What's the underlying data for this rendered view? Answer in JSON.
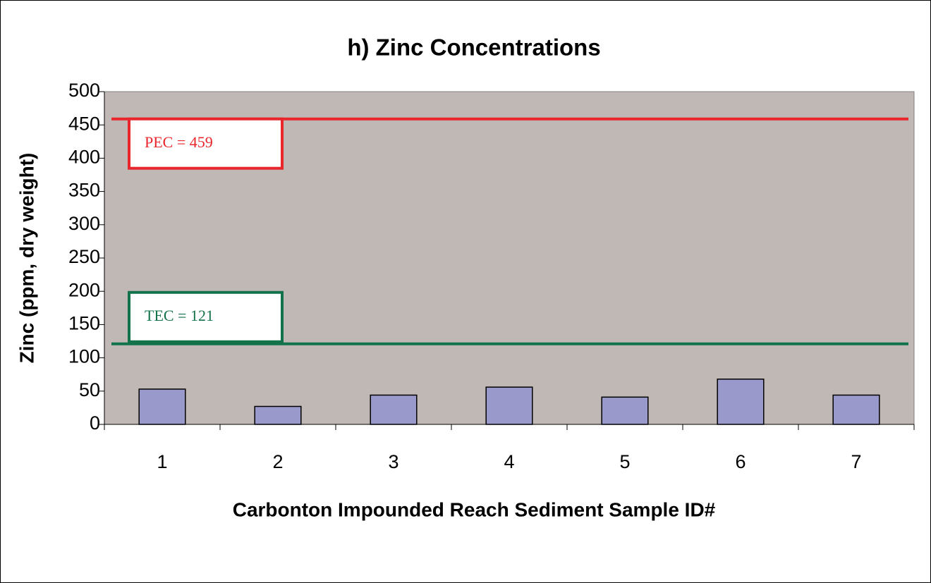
{
  "chart_data": {
    "type": "bar",
    "title": "h) Zinc Concentrations",
    "x_label": "Carbonton Impounded Reach Sediment Sample ID#",
    "y_label": "Zinc (ppm, dry weight)",
    "categories": [
      "1",
      "2",
      "3",
      "4",
      "5",
      "6",
      "7"
    ],
    "values": [
      53,
      27,
      44,
      56,
      41,
      68,
      44
    ],
    "color": "#9999cc",
    "ylim": [
      0,
      500
    ],
    "yticks": [
      0,
      50,
      100,
      150,
      200,
      250,
      300,
      350,
      400,
      450,
      500
    ],
    "reference_lines": [
      {
        "label": "PEC = 459",
        "value": 459,
        "color": "#e8262b"
      },
      {
        "label": "TEC = 121",
        "value": 121,
        "color": "#12734a"
      }
    ]
  }
}
